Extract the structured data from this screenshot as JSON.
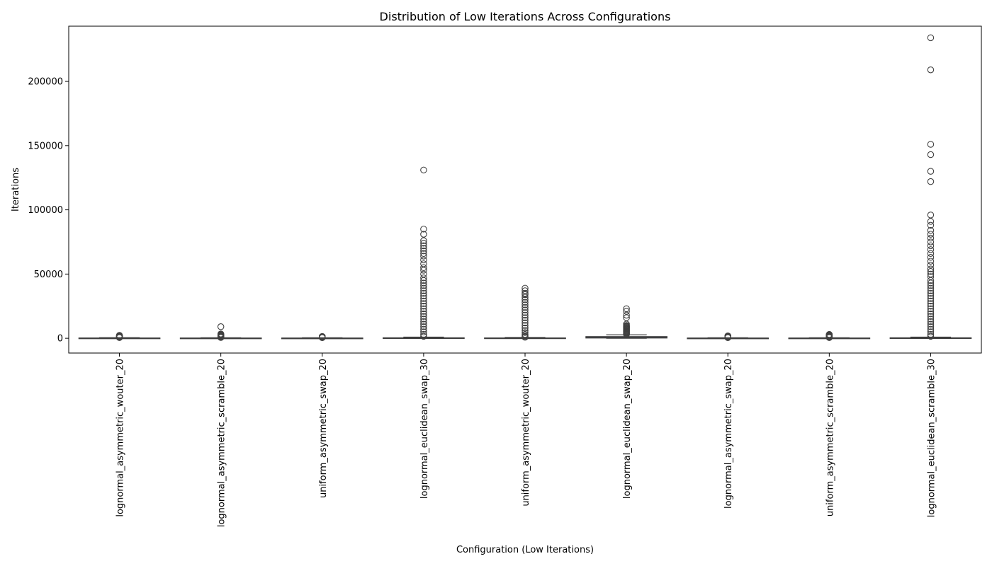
{
  "chart_data": {
    "type": "box",
    "title": "Distribution of Low Iterations Across Configurations",
    "xlabel": "Configuration (Low Iterations)",
    "ylabel": "Iterations",
    "ylim": [
      -11500,
      243000
    ],
    "yticks": [
      0,
      50000,
      100000,
      150000,
      200000
    ],
    "grid": false,
    "categories": [
      "lognormal_asymmetric_wouter_20",
      "lognormal_asymmetric_scramble_20",
      "uniform_asymmetric_swap_20",
      "lognormal_euclidean_swap_30",
      "uniform_asymmetric_wouter_20",
      "lognormal_euclidean_swap_20",
      "lognormal_asymmetric_swap_20",
      "uniform_asymmetric_scramble_20",
      "lognormal_euclidean_scramble_30"
    ],
    "boxes": [
      {
        "q1": 40,
        "median": 90,
        "q3": 220,
        "whisker_low": 1,
        "whisker_high": 480,
        "outliers": [
          550,
          700,
          900,
          1100,
          1300,
          1500,
          1700,
          1900,
          2100,
          2300
        ]
      },
      {
        "q1": 30,
        "median": 80,
        "q3": 200,
        "whisker_low": 1,
        "whisker_high": 450,
        "outliers": [
          600,
          800,
          1000,
          1300,
          1600,
          1900,
          2200,
          2600,
          3000,
          3400,
          9000
        ]
      },
      {
        "q1": 30,
        "median": 70,
        "q3": 180,
        "whisker_low": 1,
        "whisker_high": 400,
        "outliers": [
          500,
          600,
          700,
          800,
          900,
          1000,
          1100,
          1200,
          1300,
          1400
        ]
      },
      {
        "q1": 50,
        "median": 150,
        "q3": 400,
        "whisker_low": 1,
        "whisker_high": 900,
        "outliers": [
          1500,
          3000,
          5000,
          7000,
          9000,
          11000,
          13000,
          15000,
          17000,
          19000,
          21000,
          23000,
          25000,
          27000,
          29000,
          31000,
          33000,
          35000,
          37000,
          39000,
          41000,
          43000,
          45000,
          47000,
          50000,
          53000,
          55000,
          58000,
          61000,
          64000,
          66000,
          68000,
          70000,
          72000,
          74000,
          76000,
          81000,
          85000,
          131000
        ]
      },
      {
        "q1": 40,
        "median": 100,
        "q3": 280,
        "whisker_low": 1,
        "whisker_high": 650,
        "outliers": [
          800,
          1200,
          2000,
          3000,
          4500,
          6000,
          8000,
          10000,
          12000,
          14000,
          16000,
          18000,
          20000,
          22000,
          24000,
          26000,
          28000,
          30000,
          32000,
          34000,
          35000,
          37000,
          39000
        ]
      },
      {
        "q1": 200,
        "median": 600,
        "q3": 1300,
        "whisker_low": 1,
        "whisker_high": 2700,
        "outliers": [
          3000,
          3500,
          4000,
          4500,
          5000,
          5500,
          6000,
          6500,
          7000,
          7500,
          8000,
          8500,
          9000,
          9500,
          10000,
          11000,
          16000,
          18000,
          21000,
          23000
        ]
      },
      {
        "q1": 30,
        "median": 70,
        "q3": 180,
        "whisker_low": 1,
        "whisker_high": 420,
        "outliers": [
          500,
          650,
          800,
          950,
          1100,
          1250,
          1400,
          1550,
          1700,
          1850
        ]
      },
      {
        "q1": 30,
        "median": 80,
        "q3": 200,
        "whisker_low": 1,
        "whisker_high": 450,
        "outliers": [
          550,
          700,
          900,
          1100,
          1300,
          1500,
          1700,
          1900,
          2100,
          2300,
          2500,
          2700,
          3000
        ]
      },
      {
        "q1": 50,
        "median": 150,
        "q3": 400,
        "whisker_low": 1,
        "whisker_high": 900,
        "outliers": [
          1500,
          3000,
          5000,
          7000,
          9000,
          11000,
          13000,
          15000,
          17000,
          19000,
          21000,
          23000,
          25000,
          27000,
          29000,
          31000,
          33000,
          35000,
          37000,
          39000,
          41000,
          43000,
          45000,
          48000,
          50000,
          52000,
          54000,
          57000,
          60000,
          63000,
          66000,
          69000,
          72000,
          75000,
          78000,
          81000,
          84000,
          88000,
          91000,
          96000,
          122000,
          130000,
          143000,
          151000,
          209000,
          234000
        ]
      }
    ]
  }
}
